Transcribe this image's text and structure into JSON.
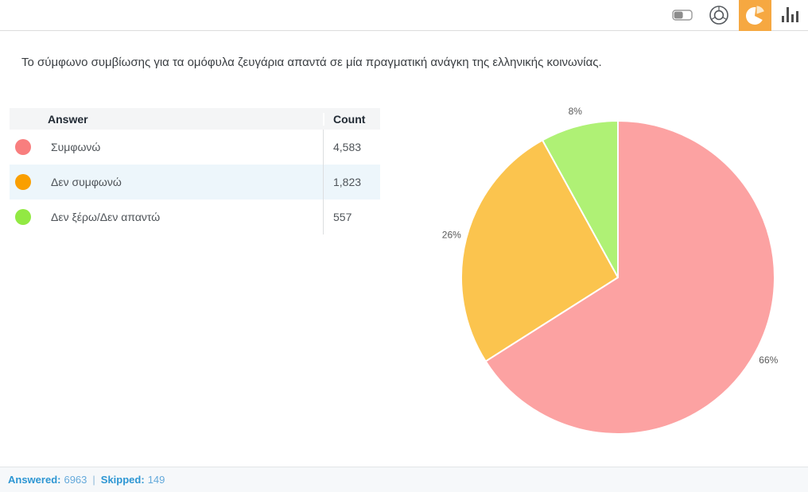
{
  "toolbar": {
    "icons": [
      "toggle-switch-icon",
      "donut-chart-icon",
      "pie-chart-icon",
      "bar-chart-icon"
    ],
    "active_view": "pie-chart",
    "active_background": "#F6A841"
  },
  "question": {
    "text": "Το σύμφωνο συμβίωσης για τα ομόφυλα ζευγάρια απαντά σε μία πραγματική ανάγκη της ελληνικής κοινωνίας."
  },
  "table": {
    "columns": [
      "Answer",
      "Count"
    ],
    "rows": [
      {
        "label": "Συμφωνώ",
        "count": "4,583",
        "color": "#F87E7E"
      },
      {
        "label": "Δεν συμφωνώ",
        "count": "1,823",
        "color": "#FA9F00"
      },
      {
        "label": "Δεν ξέρω/Δεν απαντώ",
        "count": "557",
        "color": "#92E943"
      }
    ],
    "highlight_row_color": "#EDF6FB"
  },
  "chart_data": {
    "type": "pie",
    "categories": [
      "Συμφωνώ",
      "Δεν συμφωνώ",
      "Δεν ξέρω/Δεν απαντώ"
    ],
    "values": [
      66,
      26,
      8
    ],
    "counts": [
      4583,
      1823,
      557
    ],
    "labels": [
      "66%",
      "26%",
      "8%"
    ],
    "colors": [
      "#FCA2A2",
      "#FBC44E",
      "#AFF175"
    ],
    "start_angle_deg": 0,
    "direction": "clockwise",
    "slice_border_color": "#FFFFFF",
    "legend_position": "table-left",
    "title": ""
  },
  "footer": {
    "answered_label": "Answered:",
    "answered_value": "6963",
    "separator": "|",
    "skipped_label": "Skipped:",
    "skipped_value": "149"
  }
}
